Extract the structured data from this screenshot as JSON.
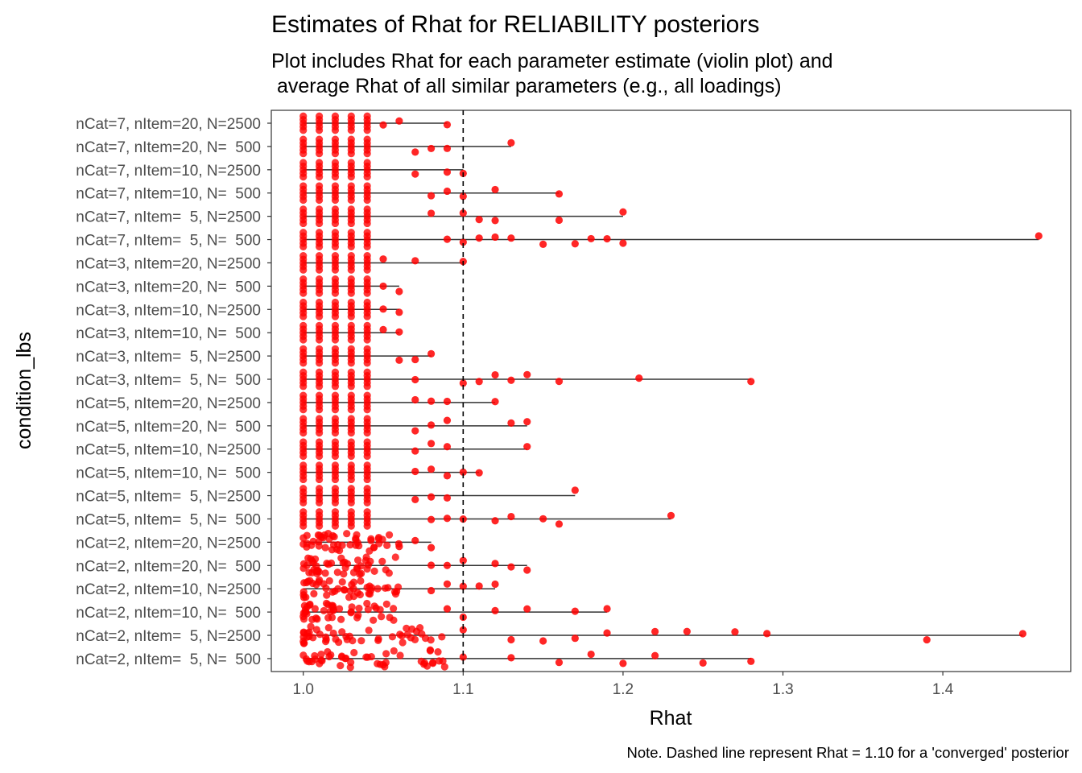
{
  "chart_data": {
    "type": "scatter",
    "title": "Estimates of Rhat for RELIABILITY posteriors",
    "subtitle_lines": [
      "Plot includes Rhat for each parameter estimate (violin plot) and",
      " average Rhat of all similar parameters (e.g., all loadings)"
    ],
    "xlabel": "Rhat",
    "ylabel": "condition_lbs",
    "caption": "Note. Dashed line represent Rhat = 1.10 for a 'converged' posterior",
    "xlim": [
      0.98,
      1.48
    ],
    "xticks": [
      "1.0",
      "1.1",
      "1.2",
      "1.3",
      "1.4"
    ],
    "reference_line": {
      "x": 1.1,
      "style": "dashed",
      "color": "#000000"
    },
    "point_color": "#ff0000",
    "grid": false,
    "categories": [
      {
        "label": "nCat=7, nItem=20, N=2500",
        "max": 1.09,
        "outliers": [
          1.05,
          1.06,
          1.09
        ]
      },
      {
        "label": "nCat=7, nItem=20, N=  500",
        "max": 1.13,
        "outliers": [
          1.07,
          1.08,
          1.09,
          1.13
        ]
      },
      {
        "label": "nCat=7, nItem=10, N=2500",
        "max": 1.1,
        "outliers": [
          1.07,
          1.09,
          1.1
        ]
      },
      {
        "label": "nCat=7, nItem=10, N=  500",
        "max": 1.16,
        "outliers": [
          1.08,
          1.09,
          1.1,
          1.12,
          1.16
        ]
      },
      {
        "label": "nCat=7, nItem=  5, N=2500",
        "max": 1.2,
        "outliers": [
          1.08,
          1.1,
          1.11,
          1.12,
          1.16,
          1.2
        ]
      },
      {
        "label": "nCat=7, nItem=  5, N=  500",
        "max": 1.46,
        "outliers": [
          1.09,
          1.1,
          1.11,
          1.12,
          1.13,
          1.15,
          1.17,
          1.18,
          1.19,
          1.2,
          1.46
        ]
      },
      {
        "label": "nCat=3, nItem=20, N=2500",
        "max": 1.1,
        "outliers": [
          1.05,
          1.07,
          1.1
        ]
      },
      {
        "label": "nCat=3, nItem=20, N=  500",
        "max": 1.06,
        "outliers": [
          1.05,
          1.06
        ]
      },
      {
        "label": "nCat=3, nItem=10, N=2500",
        "max": 1.06,
        "outliers": [
          1.05,
          1.06
        ]
      },
      {
        "label": "nCat=3, nItem=10, N=  500",
        "max": 1.06,
        "outliers": [
          1.05,
          1.06
        ]
      },
      {
        "label": "nCat=3, nItem=  5, N=2500",
        "max": 1.08,
        "outliers": [
          1.06,
          1.07,
          1.08
        ]
      },
      {
        "label": "nCat=3, nItem=  5, N=  500",
        "max": 1.28,
        "outliers": [
          1.07,
          1.1,
          1.11,
          1.12,
          1.13,
          1.14,
          1.16,
          1.21,
          1.28
        ]
      },
      {
        "label": "nCat=5, nItem=20, N=2500",
        "max": 1.12,
        "outliers": [
          1.07,
          1.08,
          1.09,
          1.12
        ]
      },
      {
        "label": "nCat=5, nItem=20, N=  500",
        "max": 1.14,
        "outliers": [
          1.07,
          1.08,
          1.09,
          1.13,
          1.14
        ]
      },
      {
        "label": "nCat=5, nItem=10, N=2500",
        "max": 1.14,
        "outliers": [
          1.07,
          1.08,
          1.09,
          1.14
        ]
      },
      {
        "label": "nCat=5, nItem=10, N=  500",
        "max": 1.11,
        "outliers": [
          1.07,
          1.08,
          1.09,
          1.1,
          1.11
        ]
      },
      {
        "label": "nCat=5, nItem=  5, N=2500",
        "max": 1.17,
        "outliers": [
          1.07,
          1.08,
          1.09,
          1.17
        ]
      },
      {
        "label": "nCat=5, nItem=  5, N=  500",
        "max": 1.23,
        "outliers": [
          1.08,
          1.09,
          1.1,
          1.12,
          1.13,
          1.15,
          1.16,
          1.23
        ]
      },
      {
        "label": "nCat=2, nItem=20, N=2500",
        "max": 1.08,
        "outliers": [
          1.06,
          1.07,
          1.08
        ]
      },
      {
        "label": "nCat=2, nItem=20, N=  500",
        "max": 1.14,
        "outliers": [
          1.08,
          1.09,
          1.1,
          1.12,
          1.13,
          1.14
        ]
      },
      {
        "label": "nCat=2, nItem=10, N=2500",
        "max": 1.12,
        "outliers": [
          1.08,
          1.09,
          1.1,
          1.11,
          1.12
        ]
      },
      {
        "label": "nCat=2, nItem=10, N=  500",
        "max": 1.19,
        "outliers": [
          1.09,
          1.1,
          1.12,
          1.14,
          1.17,
          1.19
        ]
      },
      {
        "label": "nCat=2, nItem=  5, N=2500",
        "max": 1.45,
        "outliers": [
          1.1,
          1.13,
          1.15,
          1.17,
          1.19,
          1.22,
          1.24,
          1.27,
          1.29,
          1.39,
          1.45
        ]
      },
      {
        "label": "nCat=2, nItem=  5, N=  500",
        "max": 1.28,
        "outliers": [
          1.1,
          1.13,
          1.16,
          1.18,
          1.2,
          1.22,
          1.25,
          1.28
        ]
      }
    ]
  }
}
